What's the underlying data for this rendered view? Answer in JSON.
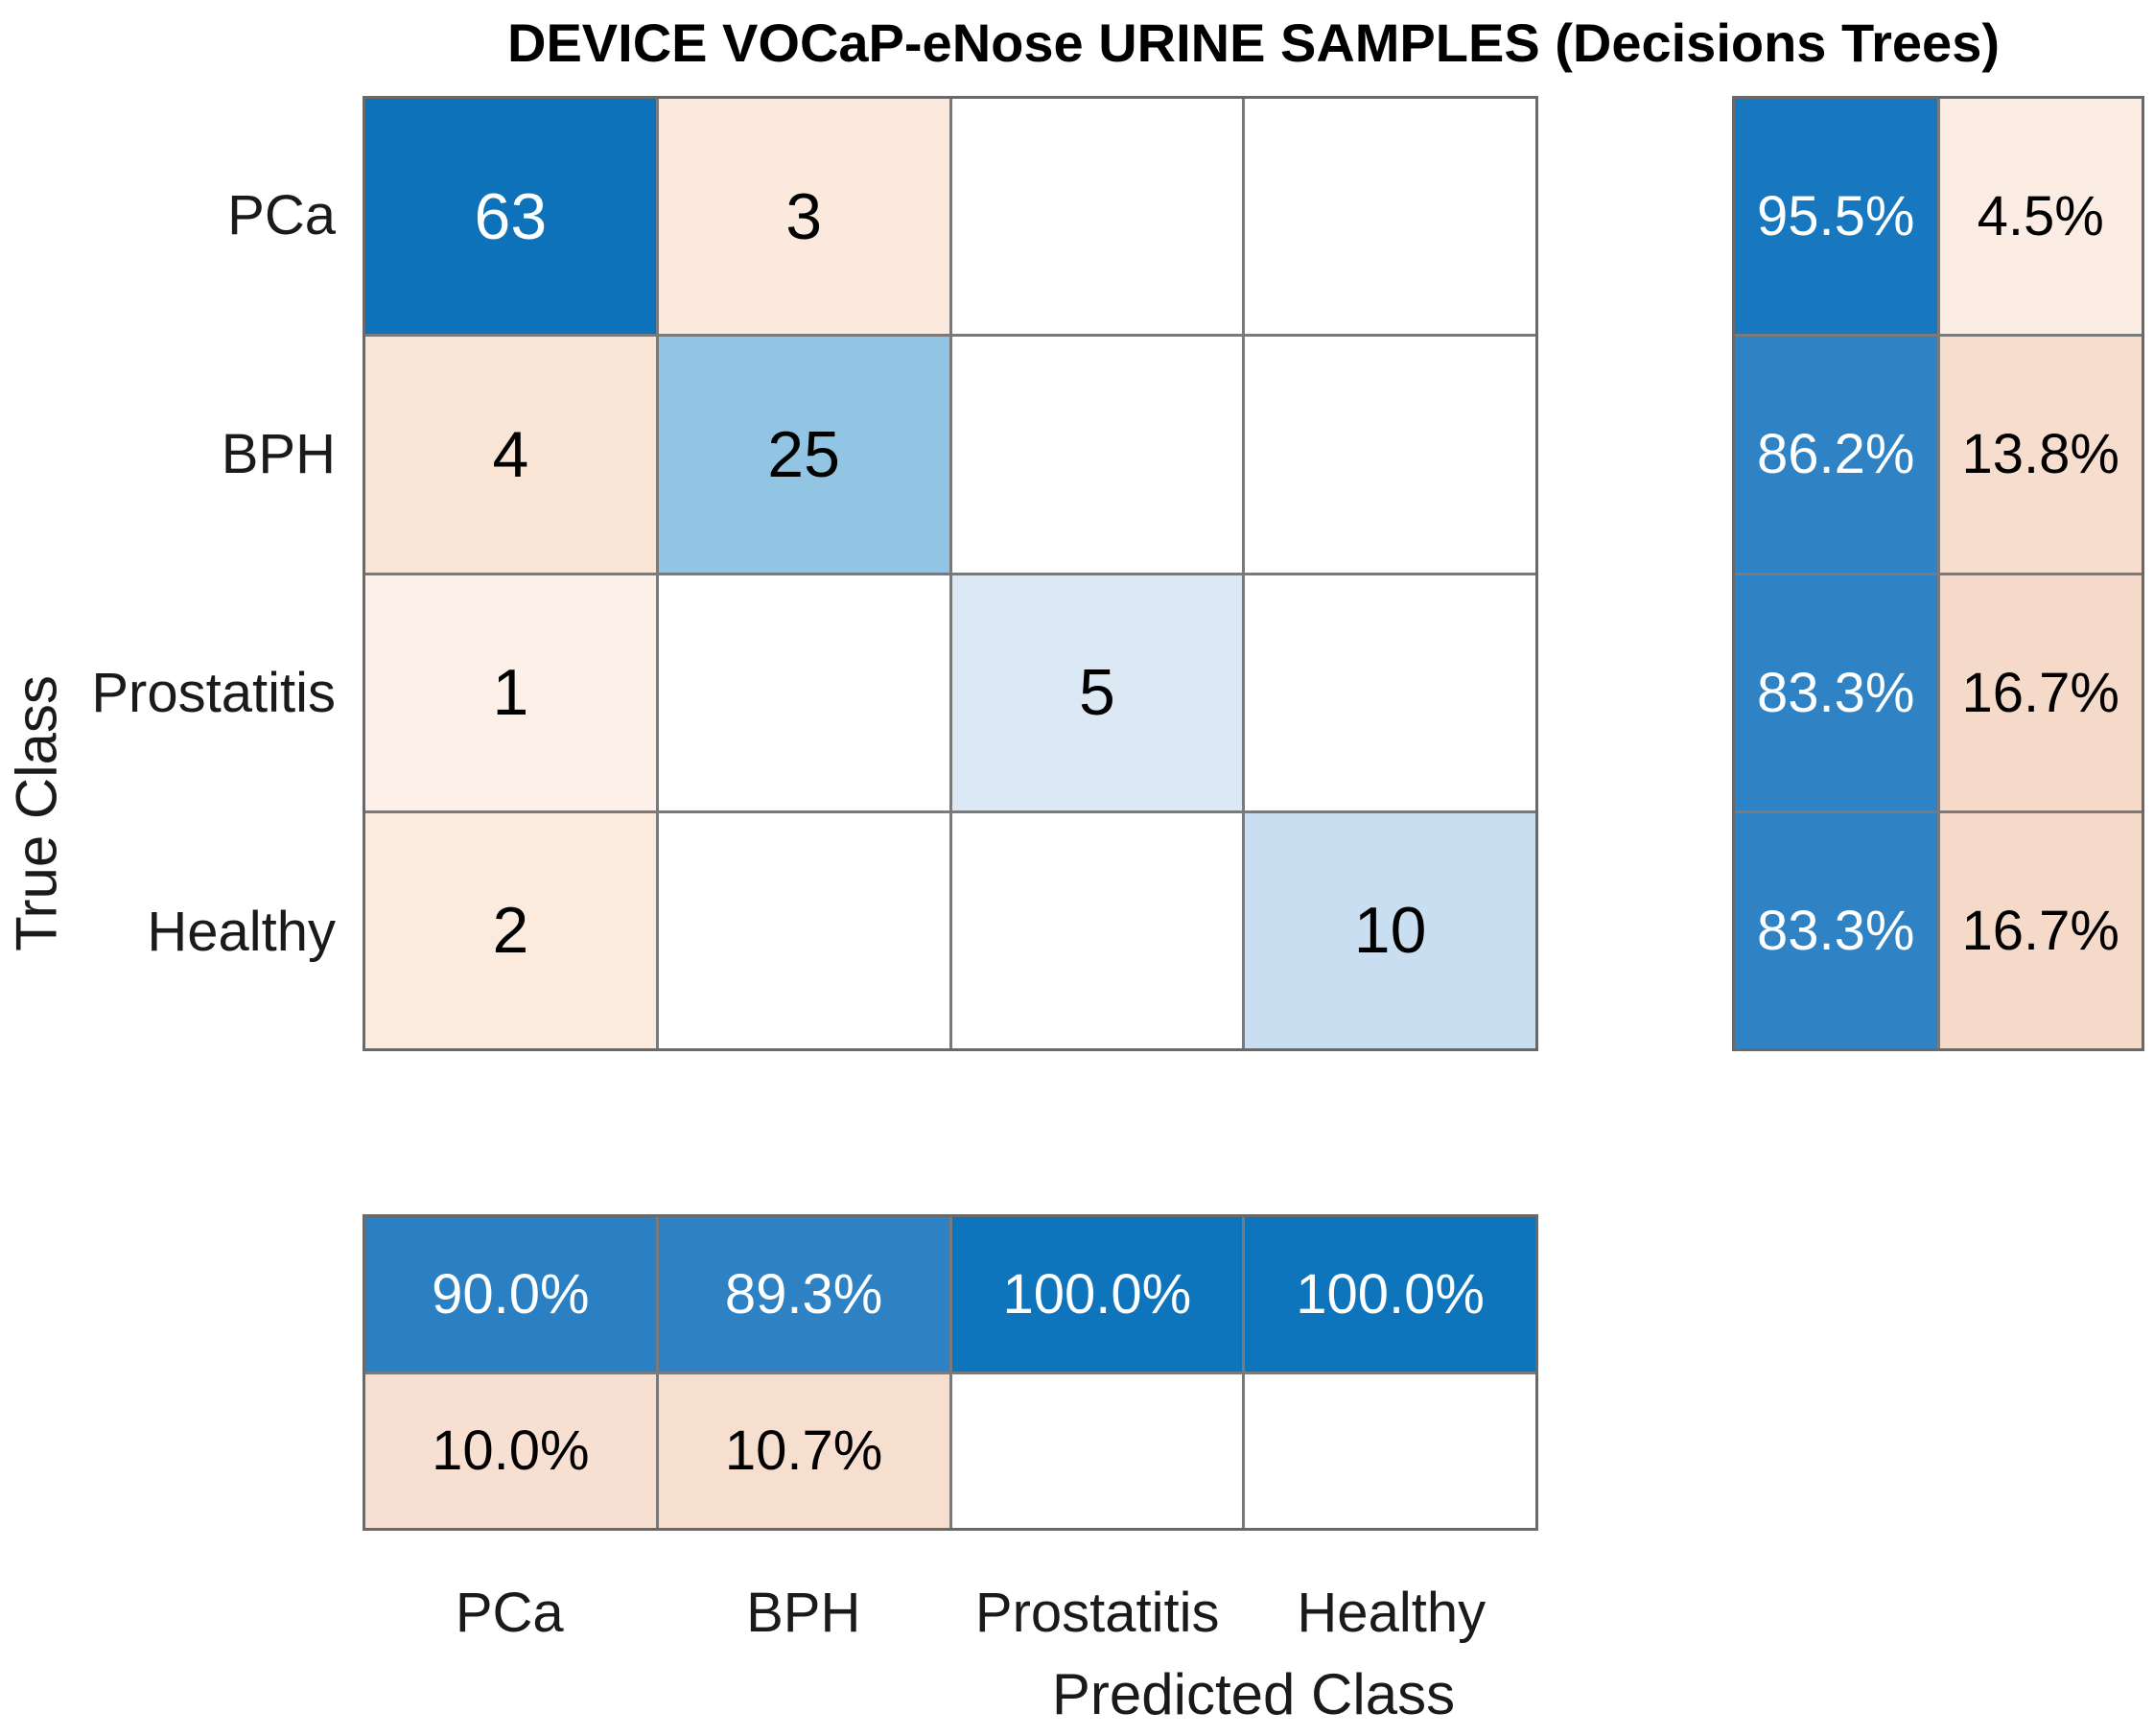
{
  "title": "DEVICE VOCaP-eNose URINE SAMPLES (Decisions Trees)",
  "x_axis": {
    "label": "Predicted Class",
    "ticks": [
      "PCa",
      "BPH",
      "Prostatitis",
      "Healthy"
    ]
  },
  "y_axis": {
    "label": "True Class",
    "ticks": [
      "PCa",
      "BPH",
      "Prostatitis",
      "Healthy"
    ]
  },
  "chart_data": {
    "type": "heatmap",
    "subtype": "confusion_matrix",
    "title": "DEVICE VOCaP-eNose URINE SAMPLES (Decisions Trees)",
    "xlabel": "Predicted Class",
    "ylabel": "True Class",
    "classes": [
      "PCa",
      "BPH",
      "Prostatitis",
      "Healthy"
    ],
    "matrix_values": [
      [
        63,
        3,
        null,
        null
      ],
      [
        4,
        25,
        null,
        null
      ],
      [
        1,
        null,
        5,
        null
      ],
      [
        2,
        null,
        null,
        10
      ]
    ],
    "row_summary_percent": [
      [
        95.5,
        4.5
      ],
      [
        86.2,
        13.8
      ],
      [
        83.3,
        16.7
      ],
      [
        83.3,
        16.7
      ]
    ],
    "column_summary_percent": [
      [
        90.0,
        89.3,
        100.0,
        100.0
      ],
      [
        10.0,
        10.7,
        null,
        null
      ]
    ],
    "diagonal_color": "#0D72BA",
    "off_diagonal_color": "#D95319",
    "grid_line_color": "#7A7A7A",
    "cells": {
      "matrix": [
        [
          {
            "text": "63",
            "bg": "#0D72BA",
            "fg": "#FFFFFF"
          },
          {
            "text": "3",
            "bg": "#FAE9DC",
            "fg": "#000000"
          },
          {
            "text": "",
            "bg": "#FFFFFF",
            "fg": "#000000"
          },
          {
            "text": "",
            "bg": "#FFFFFF",
            "fg": "#000000"
          }
        ],
        [
          {
            "text": "4",
            "bg": "#F9E5D6",
            "fg": "#000000"
          },
          {
            "text": "25",
            "bg": "#92C4E3",
            "fg": "#000000"
          },
          {
            "text": "",
            "bg": "#FFFFFF",
            "fg": "#000000"
          },
          {
            "text": "",
            "bg": "#FFFFFF",
            "fg": "#000000"
          }
        ],
        [
          {
            "text": "1",
            "bg": "#FCF0E8",
            "fg": "#000000"
          },
          {
            "text": "",
            "bg": "#FFFFFF",
            "fg": "#000000"
          },
          {
            "text": "5",
            "bg": "#DCE9F5",
            "fg": "#000000"
          },
          {
            "text": "",
            "bg": "#FFFFFF",
            "fg": "#000000"
          }
        ],
        [
          {
            "text": "2",
            "bg": "#FBEBDF",
            "fg": "#000000"
          },
          {
            "text": "",
            "bg": "#FFFFFF",
            "fg": "#000000"
          },
          {
            "text": "",
            "bg": "#FFFFFF",
            "fg": "#000000"
          },
          {
            "text": "10",
            "bg": "#C9DEF1",
            "fg": "#000000"
          }
        ]
      ],
      "row_summary": [
        [
          {
            "text": "95.5%",
            "bg": "#1777BF",
            "fg": "#FFFFFF"
          },
          {
            "text": "4.5%",
            "bg": "#FBEDE3",
            "fg": "#000000"
          }
        ],
        [
          {
            "text": "86.2%",
            "bg": "#2F82C4",
            "fg": "#FFFFFF"
          },
          {
            "text": "13.8%",
            "bg": "#F6DDCD",
            "fg": "#000000"
          }
        ],
        [
          {
            "text": "83.3%",
            "bg": "#2F83C4",
            "fg": "#FFFFFF"
          },
          {
            "text": "16.7%",
            "bg": "#F5DAC9",
            "fg": "#000000"
          }
        ],
        [
          {
            "text": "83.3%",
            "bg": "#2F83C4",
            "fg": "#FFFFFF"
          },
          {
            "text": "16.7%",
            "bg": "#F5DAC9",
            "fg": "#000000"
          }
        ]
      ],
      "column_summary": [
        [
          {
            "text": "90.0%",
            "bg": "#2A80C3",
            "fg": "#FFFFFF"
          },
          {
            "text": "89.3%",
            "bg": "#2E82C4",
            "fg": "#FFFFFF"
          },
          {
            "text": "100.0%",
            "bg": "#0E74BC",
            "fg": "#FFFFFF"
          },
          {
            "text": "100.0%",
            "bg": "#0E74BC",
            "fg": "#FFFFFF"
          }
        ],
        [
          {
            "text": "10.0%",
            "bg": "#F7E0D2",
            "fg": "#000000"
          },
          {
            "text": "10.7%",
            "bg": "#F7DFD0",
            "fg": "#000000"
          },
          {
            "text": "",
            "bg": "#FFFFFF",
            "fg": "#000000"
          },
          {
            "text": "",
            "bg": "#FFFFFF",
            "fg": "#000000"
          }
        ]
      ]
    }
  }
}
